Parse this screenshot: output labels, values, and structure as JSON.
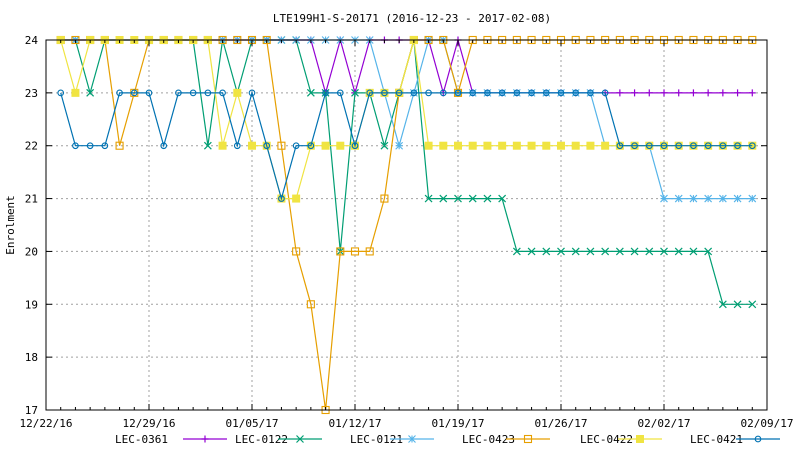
{
  "chart_data": {
    "type": "line",
    "title": "LTE199H1-S-20171 (2016-12-23 - 2017-02-08)",
    "xlabel": "",
    "ylabel": "Enrolment",
    "ylim": [
      17,
      24
    ],
    "xlim": [
      "2016-12-22",
      "2017-02-09"
    ],
    "x_tick_labels": [
      "12/22/16",
      "12/29/16",
      "01/05/17",
      "01/12/17",
      "01/19/17",
      "01/26/17",
      "02/02/17",
      "02/09/17"
    ],
    "y_ticks": [
      17,
      18,
      19,
      20,
      21,
      22,
      23,
      24
    ],
    "grid": true,
    "legend_position": "bottom",
    "x": [
      "2016-12-23",
      "2016-12-24",
      "2016-12-25",
      "2016-12-26",
      "2016-12-27",
      "2016-12-28",
      "2016-12-29",
      "2016-12-30",
      "2016-12-31",
      "2017-01-01",
      "2017-01-02",
      "2017-01-03",
      "2017-01-04",
      "2017-01-05",
      "2017-01-06",
      "2017-01-07",
      "2017-01-08",
      "2017-01-09",
      "2017-01-10",
      "2017-01-11",
      "2017-01-12",
      "2017-01-13",
      "2017-01-14",
      "2017-01-15",
      "2017-01-16",
      "2017-01-17",
      "2017-01-18",
      "2017-01-19",
      "2017-01-20",
      "2017-01-21",
      "2017-01-22",
      "2017-01-23",
      "2017-01-24",
      "2017-01-25",
      "2017-01-26",
      "2017-01-27",
      "2017-01-28",
      "2017-01-29",
      "2017-01-30",
      "2017-01-31",
      "2017-02-01",
      "2017-02-02",
      "2017-02-03",
      "2017-02-04",
      "2017-02-05",
      "2017-02-06",
      "2017-02-07",
      "2017-02-08"
    ],
    "series": [
      {
        "name": "LEC-0361",
        "color": "#9400d3",
        "marker": "plus",
        "values": [
          24,
          24,
          24,
          24,
          24,
          24,
          24,
          24,
          24,
          24,
          24,
          24,
          24,
          24,
          24,
          24,
          24,
          24,
          23,
          24,
          23,
          24,
          24,
          24,
          24,
          24,
          23,
          24,
          23,
          23,
          23,
          23,
          23,
          23,
          23,
          23,
          23,
          23,
          23,
          23,
          23,
          23,
          23,
          23,
          23,
          23,
          23,
          23
        ]
      },
      {
        "name": "LEC-0122",
        "color": "#009e73",
        "marker": "x",
        "values": [
          24,
          24,
          23,
          24,
          24,
          24,
          24,
          24,
          24,
          24,
          22,
          24,
          23,
          24,
          24,
          24,
          24,
          23,
          23,
          20,
          23,
          23,
          22,
          23,
          24,
          21,
          21,
          21,
          21,
          21,
          21,
          20,
          20,
          20,
          20,
          20,
          20,
          20,
          20,
          20,
          20,
          20,
          20,
          20,
          20,
          19,
          19,
          19
        ]
      },
      {
        "name": "LEC-0121",
        "color": "#56b4e9",
        "marker": "star",
        "values": [
          24,
          24,
          24,
          24,
          24,
          24,
          24,
          24,
          24,
          24,
          24,
          24,
          24,
          24,
          24,
          24,
          24,
          24,
          24,
          24,
          24,
          24,
          23,
          22,
          23,
          24,
          24,
          23,
          23,
          23,
          23,
          23,
          23,
          23,
          23,
          23,
          23,
          22,
          22,
          22,
          22,
          21,
          21,
          21,
          21,
          21,
          21,
          21
        ]
      },
      {
        "name": "LEC-0423",
        "color": "#e69f00",
        "marker": "square-open",
        "values": [
          24,
          24,
          24,
          24,
          22,
          23,
          24,
          24,
          24,
          24,
          24,
          24,
          24,
          24,
          24,
          22,
          20,
          19,
          17,
          20,
          20,
          20,
          21,
          23,
          24,
          24,
          24,
          23,
          24,
          24,
          24,
          24,
          24,
          24,
          24,
          24,
          24,
          24,
          24,
          24,
          24,
          24,
          24,
          24,
          24,
          24,
          24,
          24
        ]
      },
      {
        "name": "LEC-0422",
        "color": "#f0e442",
        "marker": "square-filled",
        "values": [
          24,
          23,
          24,
          24,
          24,
          24,
          24,
          24,
          24,
          24,
          24,
          22,
          23,
          22,
          22,
          21,
          21,
          22,
          22,
          22,
          22,
          23,
          23,
          23,
          24,
          22,
          22,
          22,
          22,
          22,
          22,
          22,
          22,
          22,
          22,
          22,
          22,
          22,
          22,
          22,
          22,
          22,
          22,
          22,
          22,
          22,
          22,
          22
        ]
      },
      {
        "name": "LEC-0421",
        "color": "#0072b2",
        "marker": "circle",
        "values": [
          23,
          22,
          22,
          22,
          23,
          23,
          23,
          22,
          23,
          23,
          23,
          23,
          22,
          23,
          22,
          21,
          22,
          22,
          23,
          23,
          22,
          23,
          23,
          23,
          23,
          23,
          23,
          23,
          23,
          23,
          23,
          23,
          23,
          23,
          23,
          23,
          23,
          23,
          22,
          22,
          22,
          22,
          22,
          22,
          22,
          22,
          22,
          22
        ]
      }
    ]
  }
}
